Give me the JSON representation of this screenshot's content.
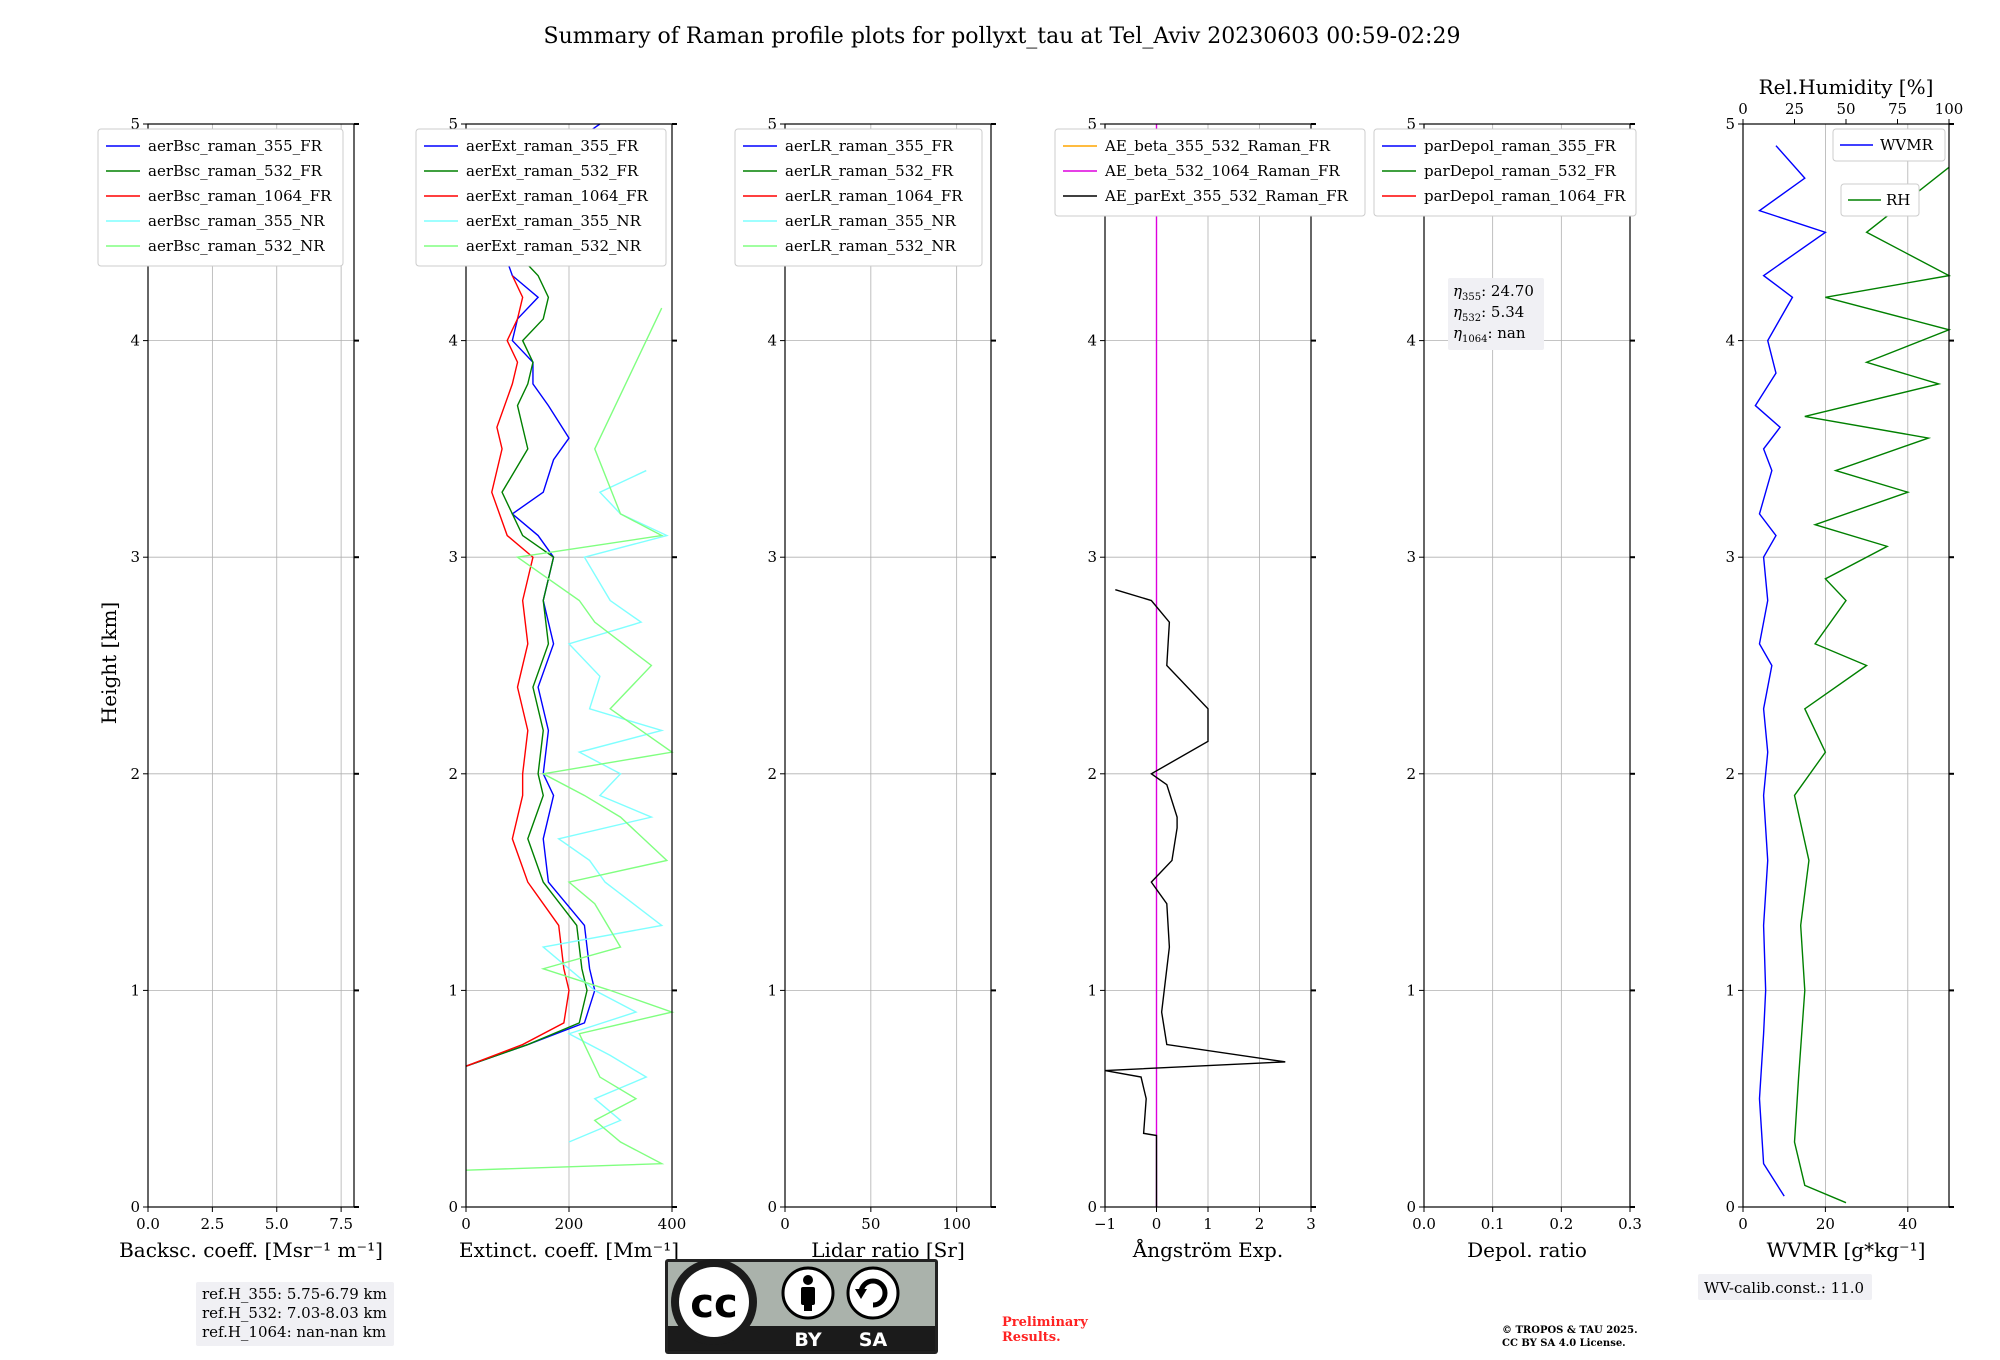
{
  "title": "Summary of Raman profile plots for pollyxt_tau at Tel_Aviv 20230603 00:59-02:29",
  "height_label": "Height [km]",
  "colors": {
    "blue": "#0000ff",
    "green": "#008000",
    "red": "#ff0000",
    "cyan": "#7fffff",
    "lightgreen": "#80ff80",
    "orange": "#ffa500",
    "magenta": "#dd00dd",
    "black": "#000000",
    "grid": "#b0b0b0"
  },
  "chart_data": [
    {
      "type": "line",
      "xlabel": "Backsc. coeff. [Msr⁻¹ m⁻¹]",
      "ylabel": "Height [km]",
      "xlim": [
        0,
        8
      ],
      "ylim": [
        0,
        5
      ],
      "xticks": [
        0,
        2.5,
        5,
        7.5
      ],
      "xtick_labels": [
        "0.0",
        "2.5",
        "5.0",
        "7.5"
      ],
      "yticks": [
        0,
        1,
        2,
        3,
        4,
        5
      ],
      "grid": true,
      "legend": "top-left",
      "series": [
        {
          "name": "aerBsc_raman_355_FR",
          "color": "blue",
          "x": [],
          "y": []
        },
        {
          "name": "aerBsc_raman_532_FR",
          "color": "green",
          "x": [],
          "y": []
        },
        {
          "name": "aerBsc_raman_1064_FR",
          "color": "red",
          "x": [],
          "y": []
        },
        {
          "name": "aerBsc_raman_355_NR",
          "color": "cyan",
          "x": [],
          "y": []
        },
        {
          "name": "aerBsc_raman_532_NR",
          "color": "lightgreen",
          "x": [],
          "y": []
        }
      ]
    },
    {
      "type": "line",
      "xlabel": "Extinct. coeff. [Mm⁻¹]",
      "xlim": [
        0,
        400
      ],
      "ylim": [
        0,
        5
      ],
      "xticks": [
        0,
        200,
        400
      ],
      "xtick_labels": [
        "0",
        "200",
        "400"
      ],
      "yticks": [
        0,
        1,
        2,
        3,
        4,
        5
      ],
      "grid": true,
      "legend": "top-left",
      "series": [
        {
          "name": "aerExt_raman_355_FR",
          "color": "blue",
          "x": [
            0,
            120,
            230,
            250,
            240,
            235,
            230,
            160,
            150,
            170,
            150,
            160,
            140,
            170,
            150,
            160,
            170,
            140,
            90,
            150,
            170,
            200,
            160,
            130,
            130,
            90,
            100,
            140,
            90,
            60,
            80,
            200,
            260
          ],
          "y": [
            0.65,
            0.75,
            0.85,
            1.0,
            1.1,
            1.2,
            1.3,
            1.5,
            1.7,
            1.9,
            2.0,
            2.2,
            2.4,
            2.6,
            2.8,
            2.9,
            3.0,
            3.1,
            3.2,
            3.3,
            3.45,
            3.55,
            3.7,
            3.8,
            3.9,
            4.0,
            4.1,
            4.2,
            4.3,
            4.5,
            4.7,
            4.9,
            5.0
          ]
        },
        {
          "name": "aerExt_raman_532_FR",
          "color": "green",
          "x": [
            0,
            120,
            220,
            235,
            225,
            220,
            215,
            150,
            120,
            150,
            140,
            150,
            130,
            160,
            150,
            160,
            170,
            110,
            70,
            120,
            110,
            100,
            120,
            130,
            110,
            150,
            160,
            140,
            100,
            120,
            150
          ],
          "y": [
            0.65,
            0.75,
            0.85,
            1.0,
            1.1,
            1.2,
            1.3,
            1.5,
            1.7,
            1.9,
            2.0,
            2.2,
            2.4,
            2.6,
            2.8,
            2.9,
            3.0,
            3.1,
            3.3,
            3.5,
            3.6,
            3.7,
            3.8,
            3.9,
            4.0,
            4.1,
            4.2,
            4.3,
            4.4,
            4.6,
            4.8
          ]
        },
        {
          "name": "aerExt_raman_1064_FR",
          "color": "red",
          "x": [
            0,
            110,
            190,
            200,
            190,
            185,
            180,
            120,
            90,
            110,
            110,
            120,
            100,
            120,
            110,
            120,
            130,
            80,
            50,
            70,
            60,
            90,
            100,
            80,
            100,
            110,
            90
          ],
          "y": [
            0.65,
            0.75,
            0.85,
            1.0,
            1.1,
            1.2,
            1.3,
            1.5,
            1.7,
            1.9,
            2.0,
            2.2,
            2.4,
            2.6,
            2.8,
            2.9,
            3.0,
            3.1,
            3.3,
            3.5,
            3.6,
            3.8,
            3.9,
            4.0,
            4.1,
            4.2,
            4.3
          ]
        },
        {
          "name": "aerExt_raman_355_NR",
          "color": "cyan",
          "x": [
            200,
            300,
            250,
            350,
            280,
            200,
            330,
            250,
            150,
            380,
            270,
            240,
            180,
            360,
            260,
            300,
            220,
            380,
            240,
            260,
            200,
            340,
            280,
            230,
            390,
            300,
            260,
            350
          ],
          "y": [
            0.3,
            0.4,
            0.5,
            0.6,
            0.7,
            0.8,
            0.9,
            1.0,
            1.2,
            1.3,
            1.5,
            1.6,
            1.7,
            1.8,
            1.9,
            2.0,
            2.1,
            2.2,
            2.3,
            2.45,
            2.6,
            2.7,
            2.8,
            3.0,
            3.1,
            3.2,
            3.3,
            3.4
          ]
        },
        {
          "name": "aerExt_raman_532_NR",
          "color": "lightgreen",
          "x": [
            0,
            380,
            300,
            250,
            330,
            260,
            220,
            400,
            280,
            150,
            300,
            250,
            200,
            390,
            300,
            230,
            150,
            400,
            280,
            360,
            250,
            220,
            100,
            380,
            300,
            250,
            380
          ],
          "y": [
            0.17,
            0.2,
            0.3,
            0.4,
            0.5,
            0.6,
            0.8,
            0.9,
            1.0,
            1.1,
            1.2,
            1.4,
            1.5,
            1.6,
            1.8,
            1.9,
            2.0,
            2.1,
            2.3,
            2.5,
            2.7,
            2.8,
            3.0,
            3.1,
            3.2,
            3.5,
            4.15
          ]
        }
      ]
    },
    {
      "type": "line",
      "xlabel": "Lidar ratio [Sr]",
      "xlim": [
        0,
        120
      ],
      "ylim": [
        0,
        5
      ],
      "xticks": [
        0,
        50,
        100
      ],
      "xtick_labels": [
        "0",
        "50",
        "100"
      ],
      "yticks": [
        0,
        1,
        2,
        3,
        4,
        5
      ],
      "grid": true,
      "legend": "top-left",
      "series": [
        {
          "name": "aerLR_raman_355_FR",
          "color": "blue",
          "x": [],
          "y": []
        },
        {
          "name": "aerLR_raman_532_FR",
          "color": "green",
          "x": [],
          "y": []
        },
        {
          "name": "aerLR_raman_1064_FR",
          "color": "red",
          "x": [],
          "y": []
        },
        {
          "name": "aerLR_raman_355_NR",
          "color": "cyan",
          "x": [],
          "y": []
        },
        {
          "name": "aerLR_raman_532_NR",
          "color": "lightgreen",
          "x": [],
          "y": []
        }
      ]
    },
    {
      "type": "line",
      "xlabel": "Ångström Exp.",
      "xlim": [
        -1,
        3
      ],
      "ylim": [
        0,
        5
      ],
      "xticks": [
        -1,
        0,
        1,
        2,
        3
      ],
      "xtick_labels": [
        "−1",
        "0",
        "1",
        "2",
        "3"
      ],
      "yticks": [
        0,
        1,
        2,
        3,
        4,
        5
      ],
      "grid": true,
      "legend": "top-left",
      "series": [
        {
          "name": "AE_beta_355_532_Raman_FR",
          "color": "orange",
          "x": [],
          "y": []
        },
        {
          "name": "AE_beta_532_1064_Raman_FR",
          "color": "magenta",
          "x": [
            0,
            0
          ],
          "y": [
            0,
            5
          ]
        },
        {
          "name": "AE_parExt_355_532_Raman_FR",
          "color": "black",
          "x": [
            0,
            0,
            -0.25,
            -0.2,
            -0.3,
            -1,
            2.5,
            0.2,
            0.1,
            0.25,
            0.2,
            -0.1,
            0.3,
            0.4,
            0.4,
            0.2,
            -0.1,
            1.0,
            1.0,
            0.2,
            0.25,
            -0.1,
            -0.8
          ],
          "y": [
            0,
            0.33,
            0.34,
            0.5,
            0.6,
            0.63,
            0.67,
            0.75,
            0.9,
            1.2,
            1.4,
            1.5,
            1.6,
            1.75,
            1.8,
            1.95,
            2.0,
            2.15,
            2.3,
            2.5,
            2.7,
            2.8,
            2.85
          ]
        }
      ]
    },
    {
      "type": "line",
      "xlabel": "Depol. ratio",
      "xlim": [
        0,
        0.3
      ],
      "ylim": [
        0,
        5
      ],
      "xticks": [
        0,
        0.1,
        0.2,
        0.3
      ],
      "xtick_labels": [
        "0.0",
        "0.1",
        "0.2",
        "0.3"
      ],
      "yticks": [
        0,
        1,
        2,
        3,
        4,
        5
      ],
      "grid": true,
      "legend": "top-left",
      "series": [
        {
          "name": "parDepol_raman_355_FR",
          "color": "blue",
          "x": [],
          "y": []
        },
        {
          "name": "parDepol_raman_532_FR",
          "color": "green",
          "x": [],
          "y": []
        },
        {
          "name": "parDepol_raman_1064_FR",
          "color": "red",
          "x": [],
          "y": []
        }
      ]
    },
    {
      "type": "line",
      "xlabel": "WVMR [g*kg⁻¹]",
      "x2label": "Rel.Humidity [%]",
      "xlim": [
        0,
        50
      ],
      "x2lim": [
        0,
        100
      ],
      "ylim": [
        0,
        5
      ],
      "xticks": [
        0,
        20,
        40
      ],
      "xtick_labels": [
        "0",
        "20",
        "40"
      ],
      "x2ticks": [
        0,
        25,
        50,
        75,
        100
      ],
      "x2tick_labels": [
        "0",
        "25",
        "50",
        "75",
        "100"
      ],
      "yticks": [
        0,
        1,
        2,
        3,
        4,
        5
      ],
      "grid": true,
      "legend": "top-right",
      "series": [
        {
          "name": "WVMR",
          "color": "blue",
          "x": [
            10,
            5,
            4,
            5,
            5.5,
            5,
            6,
            5,
            6,
            5,
            7,
            4,
            6,
            5,
            8,
            4,
            7,
            5,
            9,
            3,
            8,
            6,
            12,
            5,
            20,
            4,
            15,
            8
          ],
          "y": [
            0.05,
            0.2,
            0.5,
            0.8,
            1.0,
            1.3,
            1.6,
            1.9,
            2.1,
            2.3,
            2.5,
            2.6,
            2.8,
            3.0,
            3.1,
            3.2,
            3.4,
            3.5,
            3.6,
            3.7,
            3.85,
            4.0,
            4.2,
            4.3,
            4.5,
            4.6,
            4.75,
            4.9
          ]
        },
        {
          "name": "RH",
          "color": "green",
          "x": [
            50,
            30,
            25,
            27,
            30,
            28,
            32,
            25,
            40,
            30,
            60,
            35,
            50,
            40,
            70,
            35,
            80,
            45,
            90,
            30,
            95,
            60,
            100,
            40,
            100,
            60,
            100
          ],
          "y": [
            0.02,
            0.1,
            0.3,
            0.6,
            1.0,
            1.3,
            1.6,
            1.9,
            2.1,
            2.3,
            2.5,
            2.6,
            2.8,
            2.9,
            3.05,
            3.15,
            3.3,
            3.4,
            3.55,
            3.65,
            3.8,
            3.9,
            4.05,
            4.2,
            4.3,
            4.5,
            4.8
          ]
        }
      ]
    }
  ],
  "annotations": {
    "ref_heights": [
      "ref.H_355: 5.75-6.79 km",
      "ref.H_532: 7.03-8.03 km",
      "ref.H_1064: nan-nan km"
    ],
    "eta": [
      {
        "sub": "355",
        "value": ": 24.70"
      },
      {
        "sub": "532",
        "value": ": 5.34"
      },
      {
        "sub": "1064",
        "value": ": nan"
      }
    ],
    "wv_calib": "WV-calib.const.: 11.0",
    "preliminary": [
      "Preliminary",
      "Results."
    ],
    "copyright": [
      "© TROPOS & TAU 2025.",
      "CC BY SA 4.0 License."
    ],
    "license_badge": {
      "by": "BY",
      "sa": "SA",
      "icon": "cc-by-sa-icon"
    }
  }
}
